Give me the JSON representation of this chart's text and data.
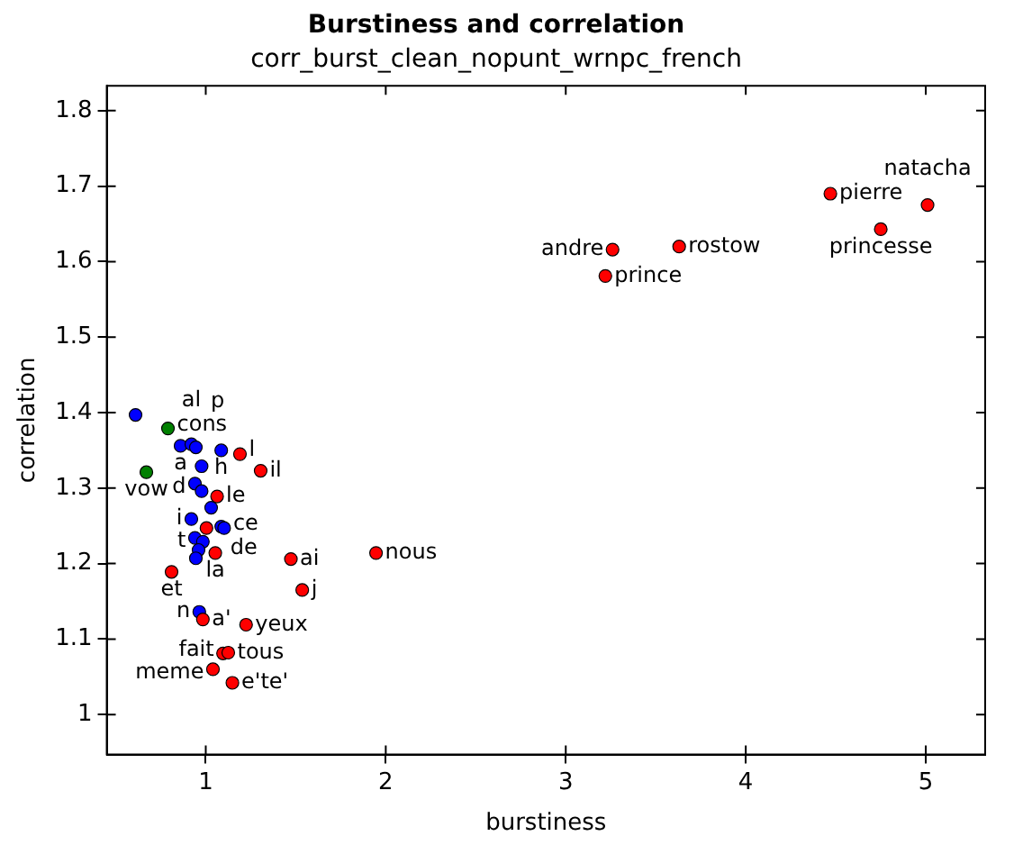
{
  "chart_data": {
    "type": "scatter",
    "title": "Burstiness and correlation",
    "subtitle": "corr_burst_clean_nopunt_wrnpc_french",
    "xlabel": "burstiness",
    "ylabel": "correlation",
    "xlim": [
      0.45,
      5.33
    ],
    "xticks": [
      1,
      2,
      3,
      4,
      5
    ],
    "ylim": [
      0.947,
      1.833
    ],
    "yticks": [
      1.0,
      1.1,
      1.2,
      1.3,
      1.4,
      1.5,
      1.6,
      1.7,
      1.8
    ],
    "grid": false,
    "legend": false,
    "marker": "circle",
    "series": [
      {
        "color": "#ff0000",
        "x": [
          4.47,
          5.01,
          4.75,
          3.26,
          3.63,
          3.22,
          1.063,
          1.004,
          1.053,
          0.81,
          1.305,
          1.473,
          1.946,
          1.536,
          0.984,
          1.224,
          1.096,
          1.125,
          1.04,
          1.148,
          1.19
        ],
        "values": [
          1.69,
          1.675,
          1.643,
          1.616,
          1.62,
          1.581,
          1.289,
          1.247,
          1.214,
          1.189,
          1.323,
          1.206,
          1.214,
          1.165,
          1.126,
          1.119,
          1.081,
          1.082,
          1.06,
          1.042,
          1.345
        ]
      },
      {
        "color": "#0000ff",
        "x": [
          0.61,
          0.86,
          0.92,
          0.945,
          1.086,
          0.977,
          0.94,
          0.977,
          1.03,
          0.92,
          1.086,
          1.102,
          0.94,
          0.984,
          0.96,
          0.945,
          0.964
        ],
        "values": [
          1.397,
          1.356,
          1.358,
          1.354,
          1.35,
          1.329,
          1.306,
          1.296,
          1.274,
          1.259,
          1.249,
          1.247,
          1.234,
          1.229,
          1.218,
          1.207,
          1.136
        ]
      },
      {
        "color": "#008000",
        "x": [
          0.79,
          0.67
        ],
        "values": [
          1.379,
          1.321
        ]
      }
    ],
    "annotations": [
      {
        "text": "pierre",
        "x": 4.47,
        "y": 1.69
      },
      {
        "text": "natacha",
        "x": 5.01,
        "y": 1.675
      },
      {
        "text": "princesse",
        "x": 4.75,
        "y": 1.643
      },
      {
        "text": "andre",
        "x": 3.26,
        "y": 1.616
      },
      {
        "text": "rostow",
        "x": 3.63,
        "y": 1.62
      },
      {
        "text": "prince",
        "x": 3.22,
        "y": 1.581
      },
      {
        "text": "cons",
        "x": 0.79,
        "y": 1.379
      },
      {
        "text": "vow",
        "x": 0.67,
        "y": 1.321
      },
      {
        "text": "a",
        "x": 0.86,
        "y": 1.356
      },
      {
        "text": "al",
        "x": 0.92,
        "y": 1.358
      },
      {
        "text": "h",
        "x": 1.086,
        "y": 1.35
      },
      {
        "text": "l",
        "x": 1.19,
        "y": 1.345
      },
      {
        "text": "p",
        "x": 0.977,
        "y": 1.329
      },
      {
        "text": "d",
        "x": 0.94,
        "y": 1.306
      },
      {
        "text": "le",
        "x": 1.063,
        "y": 1.289
      },
      {
        "text": "i",
        "x": 0.92,
        "y": 1.259
      },
      {
        "text": "de",
        "x": 1.086,
        "y": 1.249
      },
      {
        "text": "ce",
        "x": 1.102,
        "y": 1.247
      },
      {
        "text": "t",
        "x": 0.94,
        "y": 1.234
      },
      {
        "text": "la",
        "x": 1.053,
        "y": 1.214
      },
      {
        "text": "et",
        "x": 0.81,
        "y": 1.189
      },
      {
        "text": "il",
        "x": 1.305,
        "y": 1.323
      },
      {
        "text": "ai",
        "x": 1.473,
        "y": 1.206
      },
      {
        "text": "nous",
        "x": 1.946,
        "y": 1.214
      },
      {
        "text": "j",
        "x": 1.536,
        "y": 1.165
      },
      {
        "text": "n",
        "x": 0.964,
        "y": 1.136
      },
      {
        "text": "a'",
        "x": 0.984,
        "y": 1.126
      },
      {
        "text": "yeux",
        "x": 1.224,
        "y": 1.119
      },
      {
        "text": "fait",
        "x": 1.096,
        "y": 1.081
      },
      {
        "text": "tous",
        "x": 1.125,
        "y": 1.082
      },
      {
        "text": "meme",
        "x": 1.04,
        "y": 1.06
      },
      {
        "text": "e'te'",
        "x": 1.148,
        "y": 1.042
      }
    ]
  }
}
